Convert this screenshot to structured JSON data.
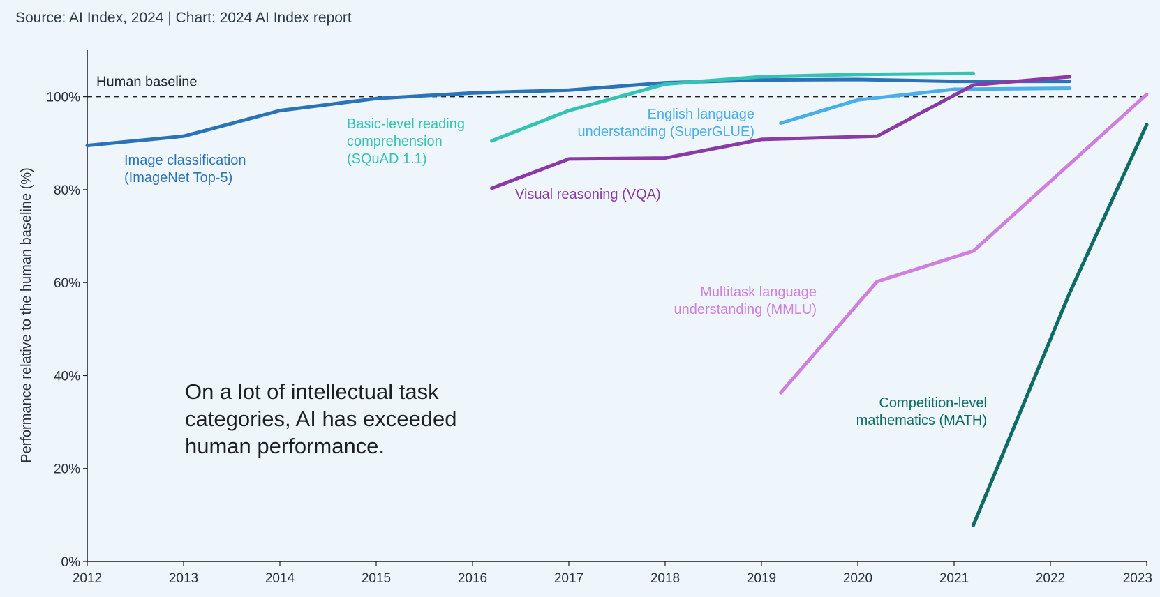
{
  "source": "Source: AI Index, 2024 | Chart: 2024 AI Index report",
  "headline": [
    "On a lot of intellectual task",
    "categories, AI has exceeded",
    "human performance."
  ],
  "colors": {
    "background": "#eef6fb",
    "axis": "#1a1a1a",
    "baseline": "#222222"
  },
  "chart_data": {
    "type": "line",
    "title": "",
    "xlabel": "",
    "ylabel": "Performance relative to the human baseline (%)",
    "xlim": [
      2012,
      2023
    ],
    "ylim": [
      0,
      110
    ],
    "x_ticks": [
      2012,
      2013,
      2014,
      2015,
      2016,
      2017,
      2018,
      2019,
      2020,
      2021,
      2022,
      2023
    ],
    "y_ticks": [
      {
        "value": 0,
        "label": "0%"
      },
      {
        "value": 20,
        "label": "20%"
      },
      {
        "value": 40,
        "label": "40%"
      },
      {
        "value": 60,
        "label": "60%"
      },
      {
        "value": 80,
        "label": "80%"
      },
      {
        "value": 100,
        "label": "100%"
      }
    ],
    "baseline": {
      "value": 100,
      "label": "Human baseline"
    },
    "series": [
      {
        "key": "imagenet",
        "name": "Image classification (ImageNet Top-5)",
        "label_lines": [
          "Image classification",
          "(ImageNet Top-5)"
        ],
        "color": "#2a73b8",
        "points": [
          [
            2012,
            89.5
          ],
          [
            2013,
            91.5
          ],
          [
            2014,
            97
          ],
          [
            2015,
            99.6
          ],
          [
            2016,
            100.8
          ],
          [
            2017,
            101.4
          ],
          [
            2018,
            103
          ],
          [
            2019,
            103.6
          ],
          [
            2020,
            103.7
          ],
          [
            2021,
            103.3
          ],
          [
            2022.2,
            103.3
          ]
        ]
      },
      {
        "key": "squad",
        "name": "Basic-level reading comprehension (SQuAD 1.1)",
        "label_lines": [
          "Basic-level reading",
          "comprehension",
          "(SQuAD 1.1)"
        ],
        "color": "#33c3b5",
        "points": [
          [
            2016.2,
            90.5
          ],
          [
            2017,
            97
          ],
          [
            2018,
            102.7
          ],
          [
            2019,
            104.3
          ],
          [
            2020,
            104.8
          ],
          [
            2021.2,
            105
          ]
        ]
      },
      {
        "key": "superglue",
        "name": "English language understanding (SuperGLUE)",
        "label_lines": [
          "English language",
          "understanding (SuperGLUE)"
        ],
        "color": "#4aaee8",
        "points": [
          [
            2019.2,
            94.3
          ],
          [
            2020,
            99.3
          ],
          [
            2021,
            101.6
          ],
          [
            2022.2,
            101.8
          ]
        ]
      },
      {
        "key": "vqa",
        "name": "Visual reasoning (VQA)",
        "label_lines": [
          "Visual reasoning (VQA)"
        ],
        "color": "#8a3aa4",
        "points": [
          [
            2016.2,
            80.3
          ],
          [
            2017,
            86.6
          ],
          [
            2018,
            86.8
          ],
          [
            2019,
            90.8
          ],
          [
            2020.2,
            91.5
          ],
          [
            2021.2,
            102.5
          ],
          [
            2022.2,
            104.3
          ]
        ]
      },
      {
        "key": "mmlu",
        "name": "Multitask language understanding (MMLU)",
        "label_lines": [
          "Multitask language",
          "understanding (MMLU)"
        ],
        "color": "#cf7fe0",
        "points": [
          [
            2019.2,
            36.3
          ],
          [
            2020.2,
            60.2
          ],
          [
            2021.2,
            66.8
          ],
          [
            2023,
            100.5
          ]
        ]
      },
      {
        "key": "math",
        "name": "Competition-level mathematics (MATH)",
        "label_lines": [
          "Competition-level",
          "mathematics (MATH)"
        ],
        "color": "#0e6b65",
        "points": [
          [
            2021.2,
            7.8
          ],
          [
            2022.2,
            57.8
          ],
          [
            2023,
            94
          ]
        ]
      }
    ]
  }
}
